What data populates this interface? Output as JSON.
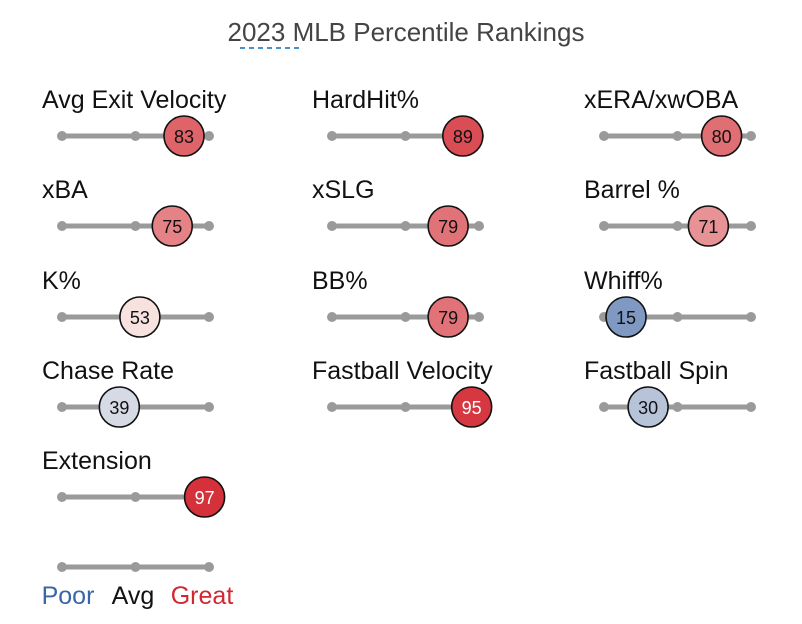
{
  "chart_data": {
    "type": "percentile-rankings",
    "title": "2023 MLB Percentile Rankings",
    "scale": {
      "min": 0,
      "mid": 50,
      "max": 100
    },
    "metrics": [
      {
        "label": "Avg Exit Velocity",
        "percentile": 83
      },
      {
        "label": "HardHit%",
        "percentile": 89
      },
      {
        "label": "xERA/xwOBA",
        "percentile": 80
      },
      {
        "label": "xBA",
        "percentile": 75
      },
      {
        "label": "xSLG",
        "percentile": 79
      },
      {
        "label": "Barrel %",
        "percentile": 71
      },
      {
        "label": "K%",
        "percentile": 53
      },
      {
        "label": "BB%",
        "percentile": 79
      },
      {
        "label": "Whiff%",
        "percentile": 15
      },
      {
        "label": "Chase Rate",
        "percentile": 39
      },
      {
        "label": "Fastball Velocity",
        "percentile": 95
      },
      {
        "label": "Fastball Spin",
        "percentile": 30
      },
      {
        "label": "Extension",
        "percentile": 97
      }
    ],
    "legend": [
      {
        "label": "Poor",
        "color": "#3a66a8"
      },
      {
        "label": "Avg",
        "color": "#111111"
      },
      {
        "label": "Great",
        "color": "#d22630"
      }
    ],
    "colors": {
      "poor": "#3a66a8",
      "avg": "#fbf5f2",
      "great": "#d22630",
      "track": "#9a9a9a"
    }
  }
}
